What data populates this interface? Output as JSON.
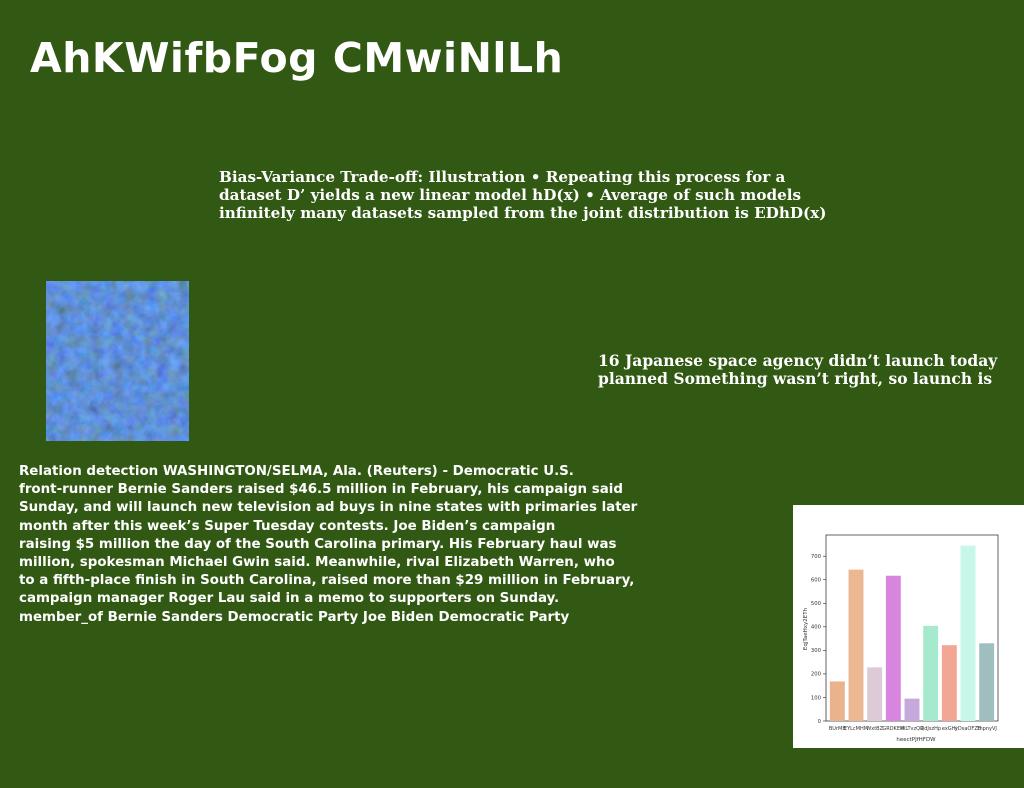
{
  "title": "AhKWifbFog CMwiNlLh",
  "bias_block": {
    "lines": [
      "Bias-Variance Trade-off: Illustration • Repeating this process for a",
      "dataset D’ yields a new linear model hD(x) • Average of such models",
      "infinitely many datasets sampled from the joint distribution is EDhD(x)"
    ]
  },
  "space_block": {
    "lines": [
      "16 Japanese space agency didn’t launch today",
      "planned Something wasn’t right, so launch is"
    ]
  },
  "news_block": {
    "lines": [
      "Relation detection WASHINGTON/SELMA, Ala. (Reuters) - Democratic U.S.",
      "front-runner Bernie Sanders raised $46.5 million in February, his campaign said",
      "Sunday, and will launch new television ad buys in nine states with primaries later",
      "month after this week’s Super Tuesday contests. Joe Biden’s campaign",
      "raising $5 million the day of the South Carolina primary. His February haul was",
      "million, spokesman Michael Gwin said. Meanwhile, rival Elizabeth Warren, who",
      "to a fifth-place finish in South Carolina, raised more than $29 million in February,",
      "campaign manager Roger Lau said in a memo to supporters on Sunday.",
      "member_of Bernie Sanders Democratic Party Joe Biden Democratic Party"
    ]
  },
  "chart_data": {
    "type": "bar",
    "categories": [
      "BUrMB",
      "EYLcMHM",
      "WxtBZ",
      "GRDKEM",
      "WLTvzQR",
      "QdJszHp",
      "exGHj",
      "yDsaOFZB",
      "ThpnyVJ"
    ],
    "values": [
      168,
      643,
      228,
      617,
      95,
      404,
      322,
      745,
      330
    ],
    "colors": [
      "#eab28d",
      "#ecb892",
      "#dccbd7",
      "#d885e0",
      "#c5a9da",
      "#a6eacd",
      "#f3a693",
      "#c6f7e9",
      "#9fbfbf"
    ],
    "xlabel": "heectPJfHFDW",
    "ylabel": "EqjTaeHxy2ETh",
    "ylim": [
      0,
      790
    ],
    "yticks": [
      0,
      100,
      200,
      300,
      400,
      500,
      600,
      700
    ],
    "grid": false
  }
}
